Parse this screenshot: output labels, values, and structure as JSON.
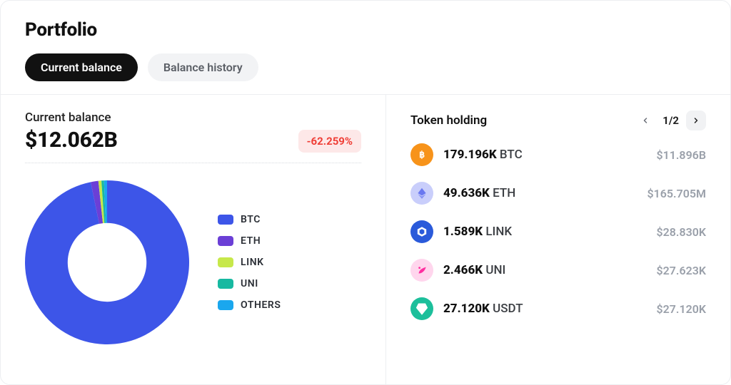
{
  "header": {
    "title": "Portfolio",
    "tabs": [
      {
        "label": "Current balance",
        "active": true
      },
      {
        "label": "Balance history",
        "active": false
      }
    ]
  },
  "balance": {
    "label": "Current balance",
    "value": "$12.062B",
    "delta": "-62.259%",
    "delta_color": "#ef3e36",
    "delta_bg": "#fde8e8"
  },
  "donut": {
    "type": "pie",
    "size": 230,
    "inner_ratio": 0.48,
    "background_color": "#ffffff",
    "slices": [
      {
        "label": "BTC",
        "value": 96.8,
        "color": "#3d55e8"
      },
      {
        "label": "ETH",
        "value": 1.5,
        "color": "#6b3fd6"
      },
      {
        "label": "LINK",
        "value": 0.6,
        "color": "#c7e84a"
      },
      {
        "label": "UNI",
        "value": 0.5,
        "color": "#17b9a1"
      },
      {
        "label": "OTHERS",
        "value": 0.6,
        "color": "#1aa7ee"
      }
    ],
    "legend_fontsize": 14,
    "legend_weight": 600
  },
  "holdings": {
    "title": "Token holding",
    "page_label": "1/2",
    "items": [
      {
        "amount": "179.196K",
        "symbol": "BTC",
        "value": "$11.896B",
        "icon_bg": "#f7931a",
        "icon_fg": "#ffffff",
        "glyph": "btc"
      },
      {
        "amount": "49.636K",
        "symbol": "ETH",
        "value": "$165.705M",
        "icon_bg": "#c9cefb",
        "icon_fg": "#6a78f0",
        "glyph": "eth"
      },
      {
        "amount": "1.589K",
        "symbol": "LINK",
        "value": "$28.830K",
        "icon_bg": "#2a5ada",
        "icon_fg": "#ffffff",
        "glyph": "link"
      },
      {
        "amount": "2.466K",
        "symbol": "UNI",
        "value": "$27.623K",
        "icon_bg": "#ffd6ed",
        "icon_fg": "#ff2fa0",
        "glyph": "uni"
      },
      {
        "amount": "27.120K",
        "symbol": "USDT",
        "value": "$27.120K",
        "icon_bg": "#1cbf9b",
        "icon_fg": "#ffffff",
        "glyph": "usdt"
      }
    ]
  }
}
